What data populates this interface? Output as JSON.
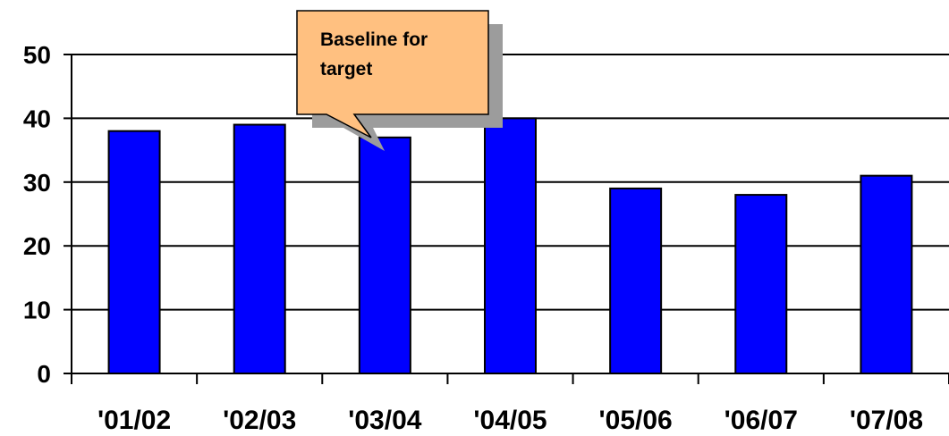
{
  "chart_data": {
    "type": "bar",
    "categories": [
      "'01/02",
      "'02/03",
      "'03/04",
      "'04/05",
      "'05/06",
      "'06/07",
      "'07/08"
    ],
    "values": [
      38,
      39,
      37,
      40,
      29,
      28,
      31
    ],
    "ylim": [
      0,
      50
    ],
    "yticks": [
      "0",
      "10",
      "20",
      "30",
      "40",
      "50"
    ],
    "grid": true,
    "legend": "none",
    "annotation": {
      "lines": [
        "Baseline for",
        "target"
      ],
      "target_category": "'03/04"
    }
  },
  "colors": {
    "bar_fill": "#0000FF",
    "bar_stroke": "#000000",
    "annotation_fill": "#FFC080",
    "annotation_shadow": "#9C9C9C",
    "grid": "#000000"
  }
}
